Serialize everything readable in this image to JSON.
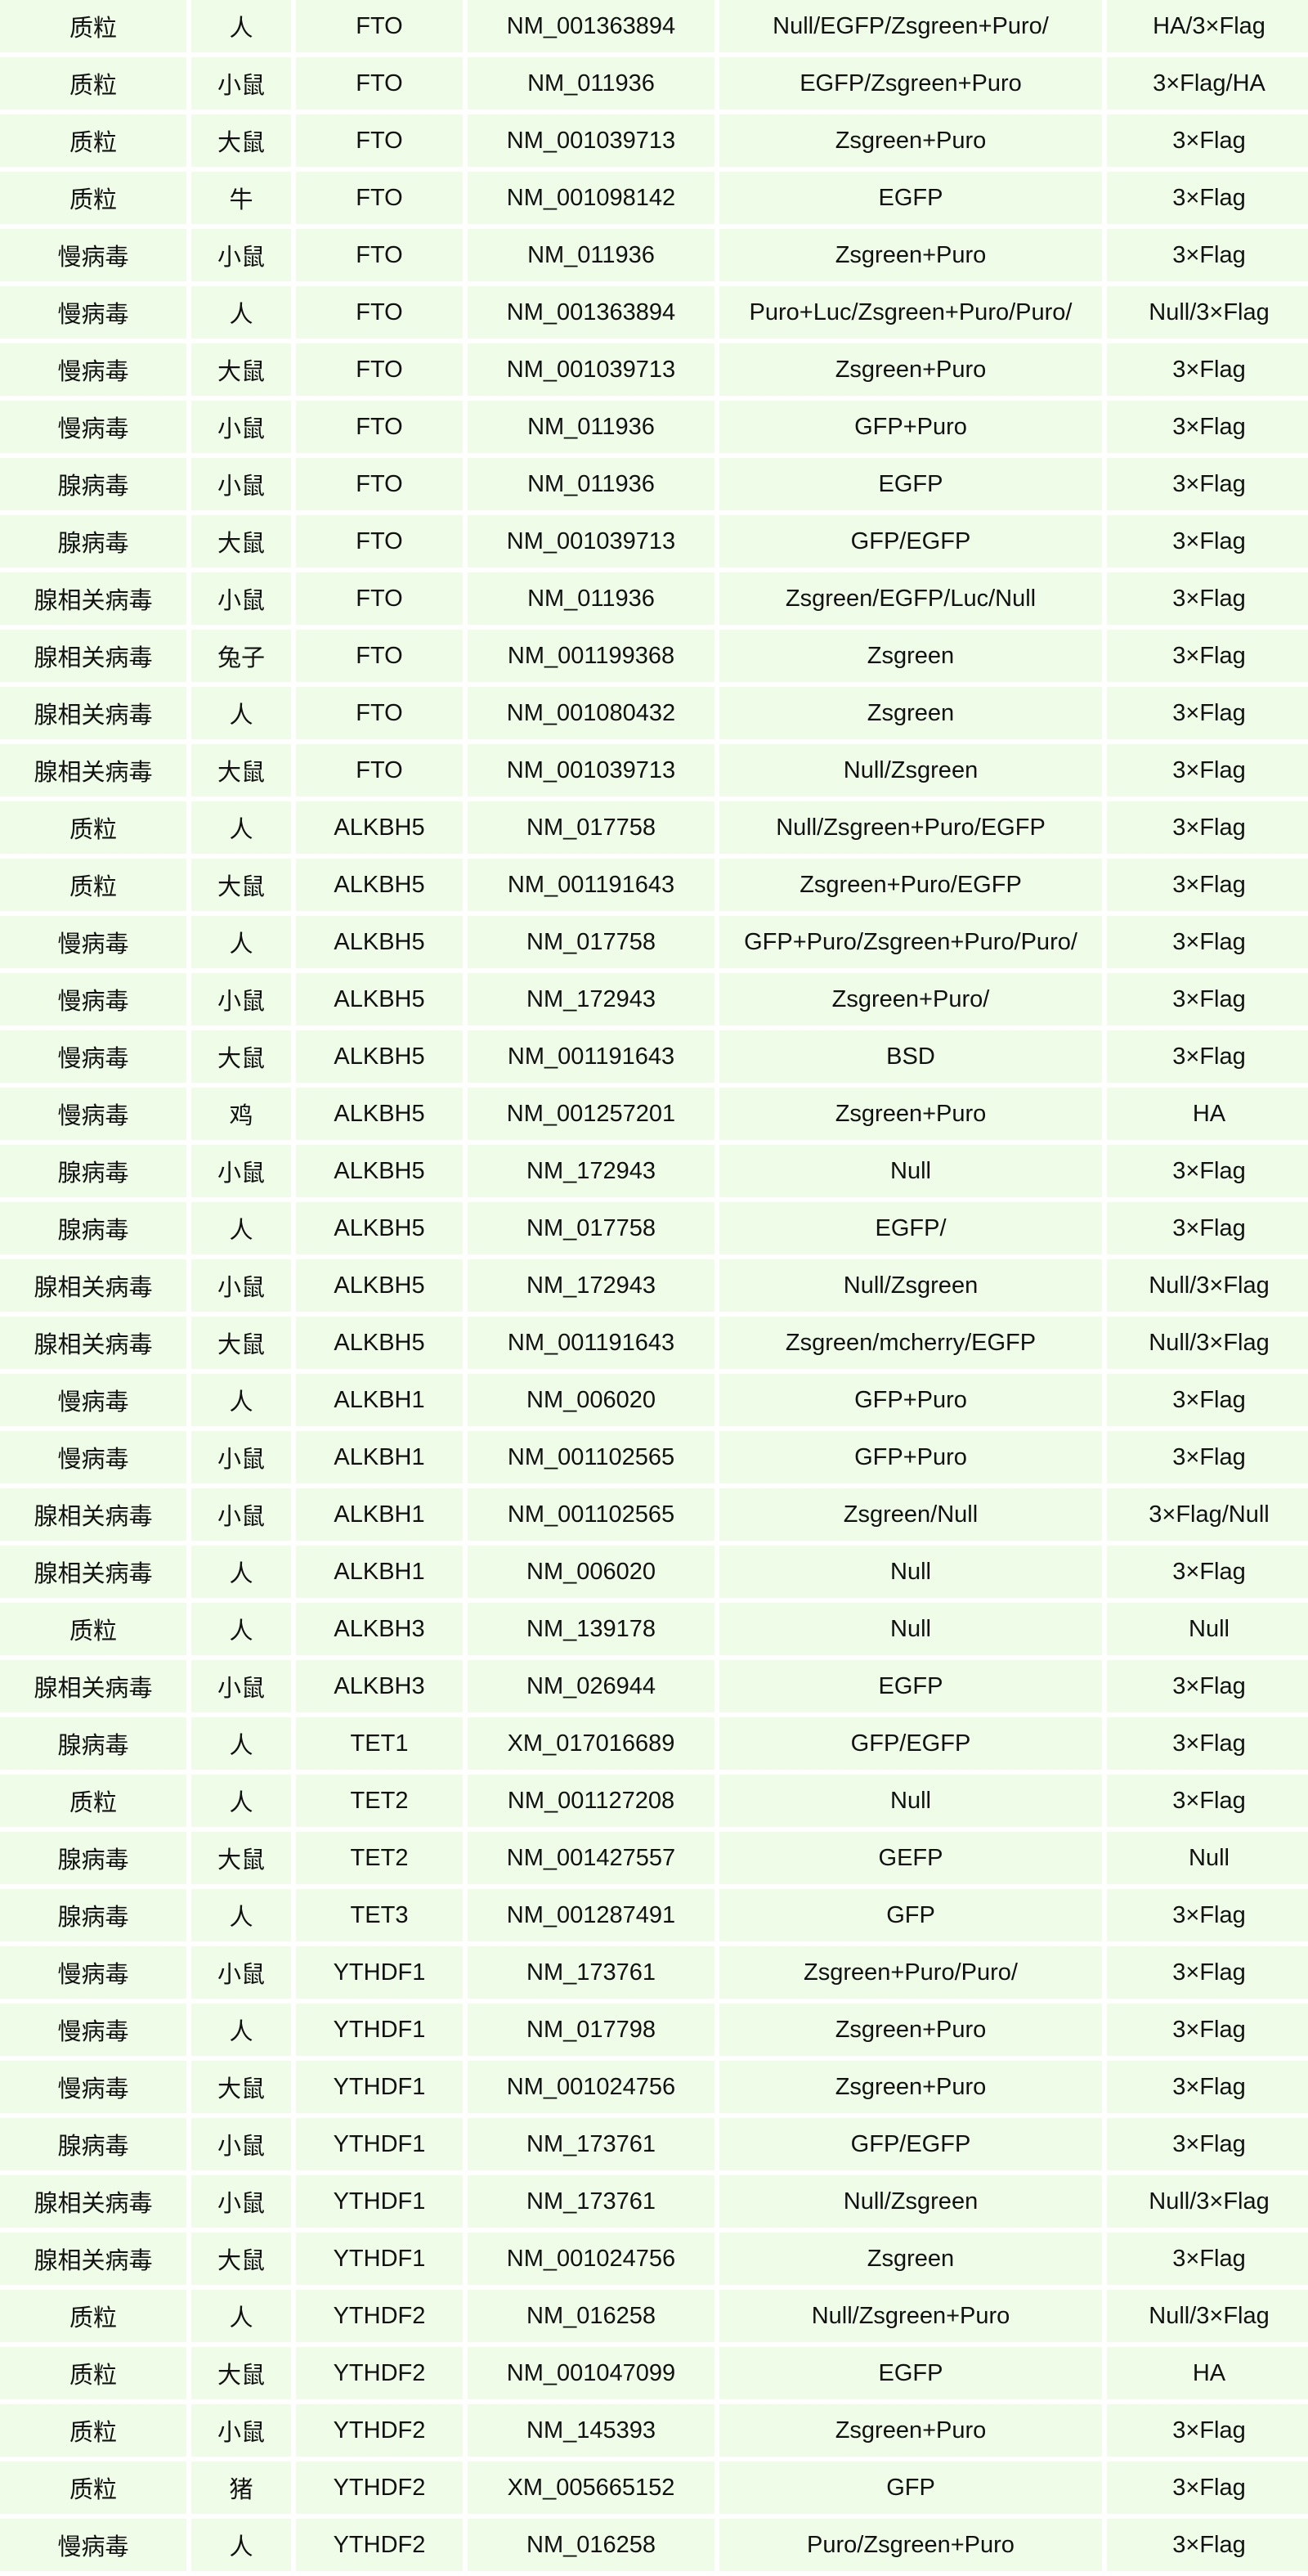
{
  "colors": {
    "cell_background": "#effde8",
    "gap": "#ffffff"
  },
  "rows": [
    [
      "质粒",
      "人",
      "FTO",
      "NM_001363894",
      "Null/EGFP/Zsgreen+Puro/",
      "HA/3×Flag"
    ],
    [
      "质粒",
      "小鼠",
      "FTO",
      "NM_011936",
      "EGFP/Zsgreen+Puro",
      "3×Flag/HA"
    ],
    [
      "质粒",
      "大鼠",
      "FTO",
      "NM_001039713",
      "Zsgreen+Puro",
      "3×Flag"
    ],
    [
      "质粒",
      "牛",
      "FTO",
      "NM_001098142",
      "EGFP",
      "3×Flag"
    ],
    [
      "慢病毒",
      "小鼠",
      "FTO",
      "NM_011936",
      "Zsgreen+Puro",
      "3×Flag"
    ],
    [
      "慢病毒",
      "人",
      "FTO",
      "NM_001363894",
      "Puro+Luc/Zsgreen+Puro/Puro/",
      "Null/3×Flag"
    ],
    [
      "慢病毒",
      "大鼠",
      "FTO",
      "NM_001039713",
      "Zsgreen+Puro",
      "3×Flag"
    ],
    [
      "慢病毒",
      "小鼠",
      "FTO",
      "NM_011936",
      "GFP+Puro",
      "3×Flag"
    ],
    [
      "腺病毒",
      "小鼠",
      "FTO",
      "NM_011936",
      "EGFP",
      "3×Flag"
    ],
    [
      "腺病毒",
      "大鼠",
      "FTO",
      "NM_001039713",
      "GFP/EGFP",
      "3×Flag"
    ],
    [
      "腺相关病毒",
      "小鼠",
      "FTO",
      "NM_011936",
      "Zsgreen/EGFP/Luc/Null",
      "3×Flag"
    ],
    [
      "腺相关病毒",
      "兔子",
      "FTO",
      "NM_001199368",
      "Zsgreen",
      "3×Flag"
    ],
    [
      "腺相关病毒",
      "人",
      "FTO",
      "NM_001080432",
      "Zsgreen",
      "3×Flag"
    ],
    [
      "腺相关病毒",
      "大鼠",
      "FTO",
      "NM_001039713",
      "Null/Zsgreen",
      "3×Flag"
    ],
    [
      "质粒",
      "人",
      "ALKBH5",
      "NM_017758",
      "Null/Zsgreen+Puro/EGFP",
      "3×Flag"
    ],
    [
      "质粒",
      "大鼠",
      "ALKBH5",
      "NM_001191643",
      "Zsgreen+Puro/EGFP",
      "3×Flag"
    ],
    [
      "慢病毒",
      "人",
      "ALKBH5",
      "NM_017758",
      "GFP+Puro/Zsgreen+Puro/Puro/",
      "3×Flag"
    ],
    [
      "慢病毒",
      "小鼠",
      "ALKBH5",
      "NM_172943",
      "Zsgreen+Puro/",
      "3×Flag"
    ],
    [
      "慢病毒",
      "大鼠",
      "ALKBH5",
      "NM_001191643",
      "BSD",
      "3×Flag"
    ],
    [
      "慢病毒",
      "鸡",
      "ALKBH5",
      "NM_001257201",
      "Zsgreen+Puro",
      "HA"
    ],
    [
      "腺病毒",
      "小鼠",
      "ALKBH5",
      "NM_172943",
      "Null",
      "3×Flag"
    ],
    [
      "腺病毒",
      "人",
      "ALKBH5",
      "NM_017758",
      "EGFP/",
      "3×Flag"
    ],
    [
      "腺相关病毒",
      "小鼠",
      "ALKBH5",
      "NM_172943",
      "Null/Zsgreen",
      "Null/3×Flag"
    ],
    [
      "腺相关病毒",
      "大鼠",
      "ALKBH5",
      "NM_001191643",
      "Zsgreen/mcherry/EGFP",
      "Null/3×Flag"
    ],
    [
      "慢病毒",
      "人",
      "ALKBH1",
      "NM_006020",
      "GFP+Puro",
      "3×Flag"
    ],
    [
      "慢病毒",
      "小鼠",
      "ALKBH1",
      "NM_001102565",
      "GFP+Puro",
      "3×Flag"
    ],
    [
      "腺相关病毒",
      "小鼠",
      "ALKBH1",
      "NM_001102565",
      "Zsgreen/Null",
      "3×Flag/Null"
    ],
    [
      "腺相关病毒",
      "人",
      "ALKBH1",
      "NM_006020",
      "Null",
      "3×Flag"
    ],
    [
      "质粒",
      "人",
      "ALKBH3",
      "NM_139178",
      "Null",
      "Null"
    ],
    [
      "腺相关病毒",
      "小鼠",
      "ALKBH3",
      "NM_026944",
      "EGFP",
      "3×Flag"
    ],
    [
      "腺病毒",
      "人",
      "TET1",
      "XM_017016689",
      "GFP/EGFP",
      "3×Flag"
    ],
    [
      "质粒",
      "人",
      "TET2",
      "NM_001127208",
      "Null",
      "3×Flag"
    ],
    [
      "腺病毒",
      "大鼠",
      "TET2",
      "NM_001427557",
      "GEFP",
      "Null"
    ],
    [
      "腺病毒",
      "人",
      "TET3",
      "NM_001287491",
      "GFP",
      "3×Flag"
    ],
    [
      "慢病毒",
      "小鼠",
      "YTHDF1",
      "NM_173761",
      "Zsgreen+Puro/Puro/",
      "3×Flag"
    ],
    [
      "慢病毒",
      "人",
      "YTHDF1",
      "NM_017798",
      "Zsgreen+Puro",
      "3×Flag"
    ],
    [
      "慢病毒",
      "大鼠",
      "YTHDF1",
      "NM_001024756",
      "Zsgreen+Puro",
      "3×Flag"
    ],
    [
      "腺病毒",
      "小鼠",
      "YTHDF1",
      "NM_173761",
      "GFP/EGFP",
      "3×Flag"
    ],
    [
      "腺相关病毒",
      "小鼠",
      "YTHDF1",
      "NM_173761",
      "Null/Zsgreen",
      "Null/3×Flag"
    ],
    [
      "腺相关病毒",
      "大鼠",
      "YTHDF1",
      "NM_001024756",
      "Zsgreen",
      "3×Flag"
    ],
    [
      "质粒",
      "人",
      "YTHDF2",
      "NM_016258",
      "Null/Zsgreen+Puro",
      "Null/3×Flag"
    ],
    [
      "质粒",
      "大鼠",
      "YTHDF2",
      "NM_001047099",
      "EGFP",
      "HA"
    ],
    [
      "质粒",
      "小鼠",
      "YTHDF2",
      "NM_145393",
      "Zsgreen+Puro",
      "3×Flag"
    ],
    [
      "质粒",
      "猪",
      "YTHDF2",
      "XM_005665152",
      "GFP",
      "3×Flag"
    ],
    [
      "慢病毒",
      "人",
      "YTHDF2",
      "NM_016258",
      "Puro/Zsgreen+Puro",
      "3×Flag"
    ]
  ]
}
